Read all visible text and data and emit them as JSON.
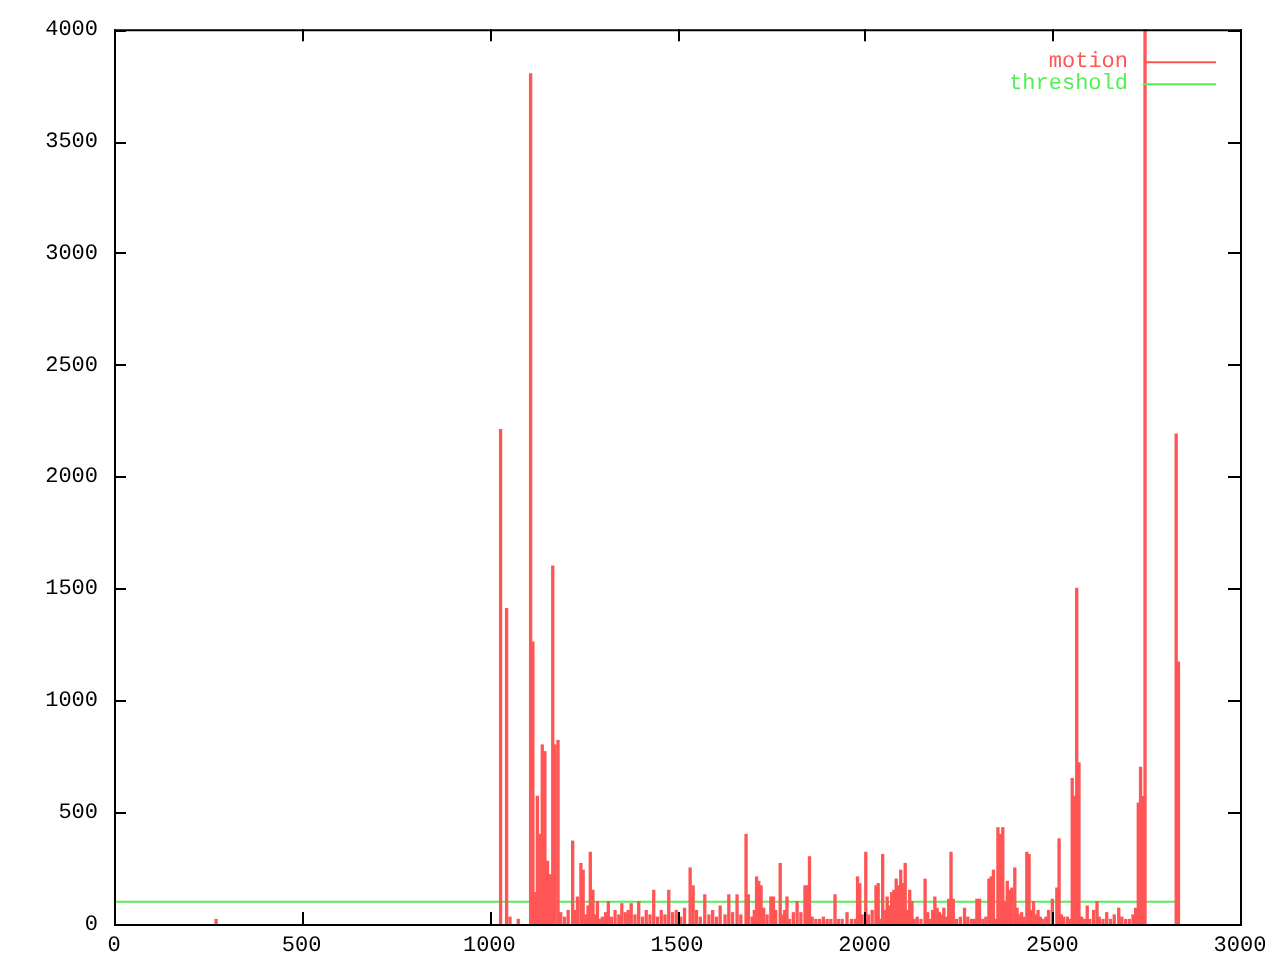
{
  "chart_data": {
    "type": "bar",
    "xlim": [
      0,
      3000
    ],
    "xticks": [
      0,
      500,
      1000,
      1500,
      2000,
      2500,
      3000
    ],
    "ylim": [
      0,
      4000
    ],
    "yticks": [
      0,
      500,
      1000,
      1500,
      2000,
      2500,
      3000,
      3500,
      4000
    ],
    "grid": false,
    "legend": "top right",
    "series": [
      {
        "name": "motion",
        "color": "#ff5555",
        "x": [
          272,
          1030,
          1046,
          1055,
          1077,
          1110,
          1116,
          1122,
          1128,
          1134,
          1141,
          1148,
          1155,
          1162,
          1169,
          1175,
          1183,
          1190,
          1200,
          1210,
          1222,
          1229,
          1235,
          1244,
          1250,
          1257,
          1263,
          1269,
          1276,
          1282,
          1288,
          1294,
          1301,
          1310,
          1317,
          1325,
          1335,
          1345,
          1353,
          1362,
          1370,
          1378,
          1388,
          1398,
          1408,
          1418,
          1428,
          1438,
          1448,
          1458,
          1468,
          1478,
          1488,
          1498,
          1510,
          1520,
          1535,
          1543,
          1552,
          1562,
          1574,
          1585,
          1595,
          1605,
          1615,
          1628,
          1638,
          1648,
          1660,
          1670,
          1684,
          1690,
          1700,
          1706,
          1712,
          1718,
          1724,
          1731,
          1740,
          1750,
          1757,
          1763,
          1775,
          1781,
          1787,
          1793,
          1800,
          1810,
          1820,
          1830,
          1841,
          1847,
          1853,
          1860,
          1870,
          1880,
          1890,
          1900,
          1910,
          1921,
          1930,
          1940,
          1953,
          1965,
          1975,
          1981,
          1987,
          1993,
          2003,
          2010,
          2020,
          2030,
          2036,
          2042,
          2048,
          2054,
          2060,
          2066,
          2072,
          2078,
          2084,
          2090,
          2096,
          2102,
          2108,
          2114,
          2120,
          2126,
          2132,
          2140,
          2150,
          2161,
          2168,
          2175,
          2181,
          2187,
          2193,
          2199,
          2205,
          2211,
          2218,
          2224,
          2230,
          2236,
          2245,
          2255,
          2266,
          2275,
          2285,
          2292,
          2299,
          2306,
          2315,
          2323,
          2331,
          2337,
          2343,
          2349,
          2355,
          2362,
          2368,
          2374,
          2380,
          2386,
          2392,
          2400,
          2406,
          2412,
          2418,
          2424,
          2432,
          2438,
          2444,
          2450,
          2456,
          2462,
          2468,
          2475,
          2483,
          2490,
          2500,
          2512,
          2518,
          2524,
          2530,
          2540,
          2547,
          2553,
          2559,
          2565,
          2571,
          2578,
          2585,
          2593,
          2600,
          2610,
          2619,
          2625,
          2635,
          2645,
          2655,
          2665,
          2677,
          2685,
          2695,
          2705,
          2715,
          2722,
          2729,
          2735,
          2741,
          2747,
          2830,
          2836
        ],
        "values": [
          20,
          2210,
          1410,
          30,
          20,
          3800,
          1260,
          140,
          570,
          400,
          800,
          770,
          280,
          220,
          1600,
          800,
          820,
          50,
          30,
          60,
          370,
          60,
          120,
          270,
          240,
          40,
          80,
          320,
          150,
          40,
          100,
          20,
          30,
          50,
          100,
          30,
          60,
          40,
          90,
          50,
          60,
          90,
          40,
          100,
          30,
          60,
          40,
          150,
          30,
          60,
          40,
          150,
          50,
          60,
          30,
          70,
          250,
          170,
          60,
          30,
          130,
          40,
          60,
          30,
          80,
          40,
          130,
          50,
          130,
          40,
          400,
          130,
          30,
          60,
          210,
          190,
          170,
          70,
          40,
          120,
          120,
          60,
          270,
          40,
          60,
          120,
          20,
          50,
          100,
          50,
          170,
          170,
          300,
          30,
          20,
          20,
          30,
          20,
          20,
          130,
          20,
          20,
          50,
          20,
          20,
          210,
          180,
          40,
          320,
          40,
          60,
          170,
          180,
          20,
          310,
          60,
          120,
          80,
          140,
          150,
          200,
          170,
          240,
          180,
          270,
          60,
          150,
          100,
          20,
          30,
          20,
          200,
          50,
          20,
          60,
          120,
          70,
          50,
          40,
          70,
          30,
          110,
          320,
          110,
          20,
          30,
          70,
          30,
          20,
          20,
          110,
          110,
          20,
          30,
          200,
          210,
          240,
          20,
          430,
          400,
          430,
          100,
          190,
          150,
          160,
          250,
          70,
          40,
          50,
          30,
          320,
          310,
          60,
          100,
          40,
          60,
          30,
          20,
          30,
          60,
          110,
          160,
          380,
          40,
          30,
          30,
          20,
          650,
          570,
          1500,
          720,
          30,
          20,
          80,
          20,
          60,
          100,
          30,
          20,
          50,
          20,
          40,
          70,
          30,
          20,
          20,
          40,
          70,
          540,
          700,
          570,
          4000,
          2190,
          1170
        ]
      },
      {
        "name": "threshold",
        "type": "line",
        "color": "#55ee55",
        "x": [
          0,
          2834
        ],
        "values": [
          100,
          100
        ]
      }
    ]
  }
}
